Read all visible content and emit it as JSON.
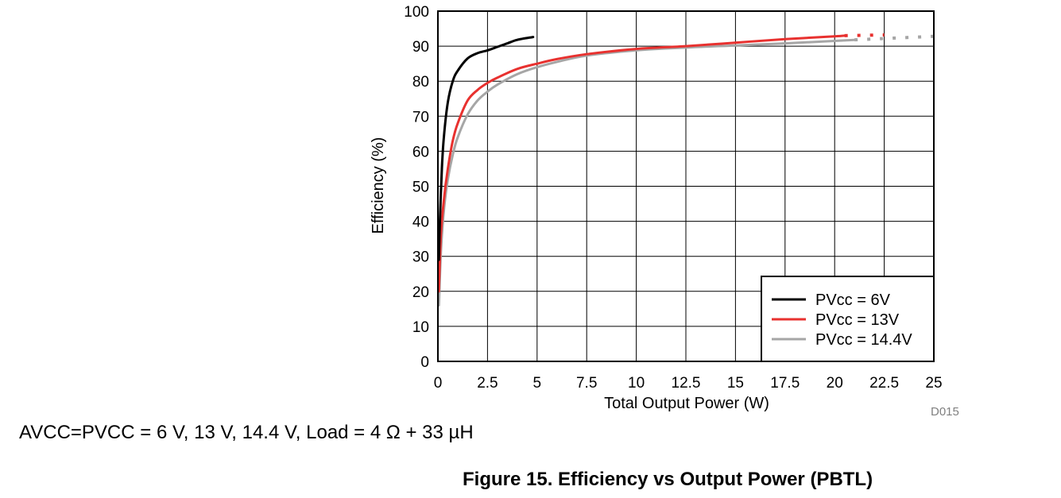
{
  "chart_data": {
    "type": "line",
    "xlabel": "Total Output Power (W)",
    "ylabel": "Efficiency (%)",
    "xlim": [
      0,
      25
    ],
    "ylim": [
      0,
      100
    ],
    "x_ticks": [
      "0",
      "2.5",
      "5",
      "7.5",
      "10",
      "12.5",
      "15",
      "17.5",
      "20",
      "22.5",
      "25"
    ],
    "y_ticks": [
      "0",
      "10",
      "20",
      "30",
      "40",
      "50",
      "60",
      "70",
      "80",
      "90",
      "100"
    ],
    "grid": true,
    "legend_position": "bottom-right",
    "figure_id": "D015",
    "series": [
      {
        "name": "PVcc = 6V",
        "color": "#000000",
        "x": [
          0.05,
          0.1,
          0.2,
          0.3,
          0.5,
          0.75,
          1.0,
          1.5,
          2.0,
          2.5,
          3.0,
          3.5,
          4.0,
          4.8
        ],
        "y": [
          29,
          40,
          55,
          64,
          74,
          80,
          83,
          86.5,
          88,
          88.8,
          89.8,
          90.8,
          91.8,
          92.6
        ]
      },
      {
        "name": "PVcc = 13V",
        "color": "#e8312f",
        "x": [
          0.05,
          0.15,
          0.3,
          0.5,
          0.75,
          1.0,
          1.5,
          2.0,
          2.5,
          3.0,
          4.0,
          5.0,
          6.0,
          7.5,
          10.0,
          12.5,
          15.0,
          17.5,
          20.0,
          20.5
        ],
        "y": [
          20,
          36,
          46,
          55,
          63,
          68,
          74.5,
          77.5,
          79.5,
          81,
          83.5,
          85,
          86.3,
          87.7,
          89.2,
          90,
          91,
          92,
          92.8,
          93
        ],
        "extension": {
          "x": [
            20.5,
            22.5
          ],
          "y": [
            93,
            93.2
          ]
        }
      },
      {
        "name": "PVcc = 14.4V",
        "color": "#a6a6a6",
        "x": [
          0.05,
          0.15,
          0.3,
          0.5,
          0.75,
          1.0,
          1.5,
          2.0,
          2.5,
          3.0,
          4.0,
          5.0,
          6.0,
          7.5,
          10.0,
          12.5,
          15.0,
          17.5,
          20.0,
          21.0
        ],
        "y": [
          16,
          31,
          43,
          52,
          59,
          64,
          70.5,
          74.5,
          77,
          79,
          82,
          84,
          85.5,
          87.3,
          88.8,
          89.6,
          90.2,
          90.8,
          91.5,
          91.8
        ],
        "extension": {
          "x": [
            21.0,
            25.0
          ],
          "y": [
            91.8,
            92.8
          ]
        }
      }
    ]
  },
  "conditions_text": "AVCC=PVCC = 6 V, 13 V, 14.4 V, Load = 4 Ω + 33 µH",
  "caption": "Figure 15. Efficiency vs Output Power (PBTL)"
}
